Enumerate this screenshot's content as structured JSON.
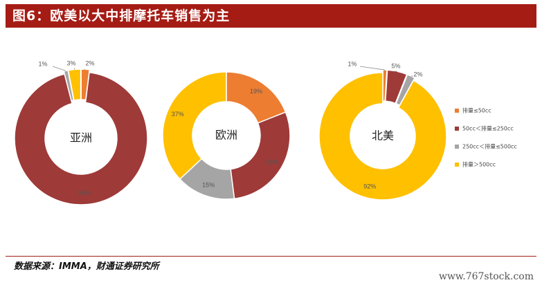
{
  "header": {
    "title": "图6：欧美以大中排摩托车销售为主"
  },
  "footer": {
    "source": "数据来源：IMMA，财通证券研究所"
  },
  "watermark": "www.767stock.com",
  "chart_data": [
    {
      "type": "pie",
      "variant": "donut",
      "title": "亚洲",
      "categories": [
        "排量≤50cc",
        "50cc＜排量≤250cc",
        "250cc＜排量≤500cc",
        "排量＞500cc"
      ],
      "values": [
        2,
        94,
        1,
        3
      ],
      "labels": [
        "2%",
        "94%",
        "1%",
        "3%"
      ]
    },
    {
      "type": "pie",
      "variant": "donut",
      "title": "欧洲",
      "categories": [
        "排量≤50cc",
        "50cc＜排量≤250cc",
        "250cc＜排量≤500cc",
        "排量＞500cc"
      ],
      "values": [
        19,
        29,
        15,
        37
      ],
      "labels": [
        "19%",
        "29%",
        "15%",
        "37%"
      ]
    },
    {
      "type": "pie",
      "variant": "donut",
      "title": "北美",
      "categories": [
        "排量≤50cc",
        "50cc＜排量≤250cc",
        "250cc＜排量≤500cc",
        "排量＞500cc"
      ],
      "values": [
        1,
        5,
        2,
        92
      ],
      "labels": [
        "1%",
        "5%",
        "2%",
        "92%"
      ]
    }
  ],
  "legend": {
    "position": "right",
    "items": [
      "排量≤50cc",
      "50cc＜排量≤250cc",
      "250cc＜排量≤500cc",
      "排量＞500cc"
    ]
  },
  "colors": [
    "#ed7d31",
    "#9e3a38",
    "#a5a5a5",
    "#ffc000"
  ]
}
